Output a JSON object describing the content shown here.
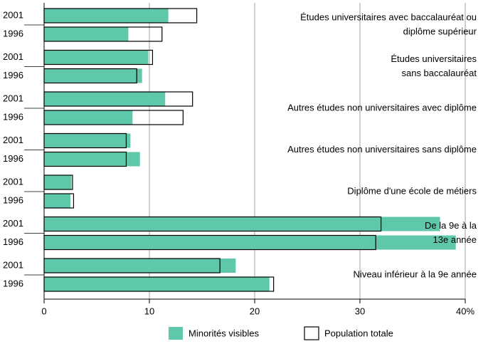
{
  "chart_data": {
    "type": "bar",
    "orientation": "horizontal",
    "categories": [
      "2001",
      "1996",
      "2001",
      "1996",
      "2001",
      "1996",
      "2001",
      "1996",
      "2001",
      "1996",
      "2001",
      "1996",
      "2001",
      "1996"
    ],
    "groups": [
      {
        "lines": [
          "Études universitaires avec baccalauréat ou",
          "diplôme supérieur"
        ]
      },
      {
        "lines": [
          "Études universitaires",
          "sans baccalauréat"
        ]
      },
      {
        "lines": [
          "Autres études non universitaires avec diplôme"
        ]
      },
      {
        "lines": [
          "Autres études non universitaires sans diplôme"
        ]
      },
      {
        "lines": [
          "Diplôme d'une école de métiers"
        ]
      },
      {
        "lines": [
          "De la 9e à la",
          "13e année"
        ]
      },
      {
        "lines": [
          "Niveau inférieur à la 9e année"
        ]
      }
    ],
    "series": [
      {
        "name": "Minorités visibles",
        "color": "#5fc8aa",
        "style": "filled",
        "values": [
          11.8,
          8.0,
          9.9,
          9.3,
          11.5,
          8.4,
          8.2,
          9.1,
          2.6,
          2.5,
          37.6,
          39.1,
          18.2,
          21.4
        ]
      },
      {
        "name": "Population totale",
        "color": "#000000",
        "style": "outline",
        "values": [
          14.5,
          11.2,
          10.3,
          8.8,
          14.1,
          13.2,
          7.8,
          7.8,
          2.7,
          2.8,
          32.0,
          31.5,
          16.7,
          21.8
        ]
      }
    ],
    "xlim": [
      0,
      40
    ],
    "xticks": [
      0,
      10,
      20,
      30,
      {
        "value": 40,
        "label": "40%"
      }
    ],
    "grid": true
  }
}
